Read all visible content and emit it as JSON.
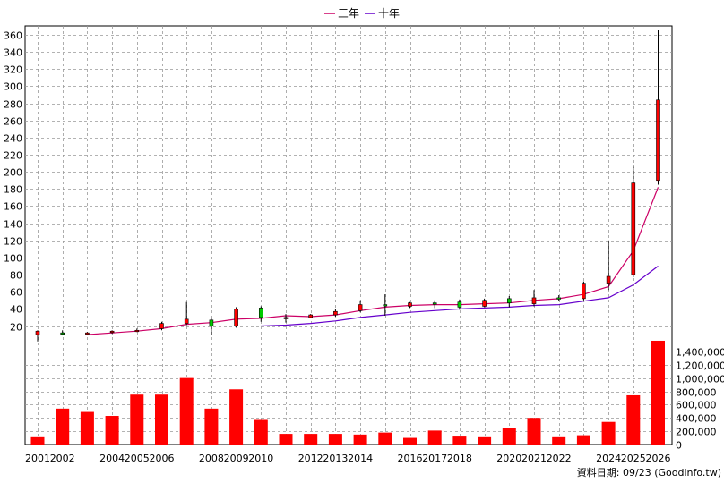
{
  "chart_data": {
    "type": "candlestick+bar",
    "legend": [
      {
        "name": "三年",
        "color": "#cc0066"
      },
      {
        "name": "十年",
        "color": "#6600cc"
      }
    ],
    "credit": "資料日期: 09/23 (Goodinfo.tw)",
    "price_axis": {
      "ticks": [
        20,
        40,
        60,
        80,
        100,
        120,
        140,
        160,
        180,
        200,
        220,
        240,
        260,
        280,
        300,
        320,
        340,
        360
      ]
    },
    "volume_axis": {
      "ticks": [
        "0",
        "200,000",
        "400,000",
        "600,000",
        "800,000",
        "1,000,000",
        "1,200,000",
        "1,400,000"
      ],
      "max": 1600000
    },
    "x_labels": [
      "2001",
      "2002",
      "2004",
      "2005",
      "2006",
      "2008",
      "2009",
      "2010",
      "2012",
      "2013",
      "2014",
      "2016",
      "2017",
      "2018",
      "2020",
      "2021",
      "2022",
      "2024",
      "2025",
      "2026"
    ],
    "candles": [
      {
        "year": 2001,
        "o": 10,
        "h": 15,
        "l": 2,
        "c": 14
      },
      {
        "year": 2002,
        "o": 12,
        "h": 15,
        "l": 9,
        "c": 11
      },
      {
        "year": 2003,
        "o": 11,
        "h": 13,
        "l": 9,
        "c": 12
      },
      {
        "year": 2004,
        "o": 13,
        "h": 15,
        "l": 11,
        "c": 14
      },
      {
        "year": 2005,
        "o": 14,
        "h": 17,
        "l": 13,
        "c": 15
      },
      {
        "year": 2006,
        "o": 17,
        "h": 25,
        "l": 15,
        "c": 23
      },
      {
        "year": 2007,
        "o": 23,
        "h": 48,
        "l": 21,
        "c": 28
      },
      {
        "year": 2008,
        "o": 27,
        "h": 30,
        "l": 10,
        "c": 20
      },
      {
        "year": 2009,
        "o": 20,
        "h": 42,
        "l": 18,
        "c": 40
      },
      {
        "year": 2010,
        "o": 41,
        "h": 43,
        "l": 25,
        "c": 30
      },
      {
        "year": 2011,
        "o": 30,
        "h": 34,
        "l": 24,
        "c": 30
      },
      {
        "year": 2012,
        "o": 30,
        "h": 34,
        "l": 29,
        "c": 33
      },
      {
        "year": 2013,
        "o": 33,
        "h": 40,
        "l": 31,
        "c": 37
      },
      {
        "year": 2014,
        "o": 38,
        "h": 50,
        "l": 36,
        "c": 45
      },
      {
        "year": 2015,
        "o": 45,
        "h": 57,
        "l": 32,
        "c": 44
      },
      {
        "year": 2016,
        "o": 43,
        "h": 48,
        "l": 41,
        "c": 47
      },
      {
        "year": 2017,
        "o": 47,
        "h": 50,
        "l": 41,
        "c": 46
      },
      {
        "year": 2018,
        "o": 48,
        "h": 51,
        "l": 39,
        "c": 42
      },
      {
        "year": 2019,
        "o": 43,
        "h": 52,
        "l": 42,
        "c": 50
      },
      {
        "year": 2020,
        "o": 52,
        "h": 55,
        "l": 42,
        "c": 47
      },
      {
        "year": 2021,
        "o": 46,
        "h": 62,
        "l": 43,
        "c": 53
      },
      {
        "year": 2022,
        "o": 53,
        "h": 56,
        "l": 49,
        "c": 52
      },
      {
        "year": 2023,
        "o": 52,
        "h": 72,
        "l": 50,
        "c": 70
      },
      {
        "year": 2024,
        "o": 70,
        "h": 120,
        "l": 62,
        "c": 78
      },
      {
        "year": 2025,
        "o": 80,
        "h": 206,
        "l": 77,
        "c": 187
      },
      {
        "year": 2026,
        "o": 190,
        "h": 366,
        "l": 185,
        "c": 284
      }
    ],
    "ma3": [
      {
        "year": 2003,
        "v": 10
      },
      {
        "year": 2004,
        "v": 12
      },
      {
        "year": 2005,
        "v": 14
      },
      {
        "year": 2006,
        "v": 17
      },
      {
        "year": 2007,
        "v": 22
      },
      {
        "year": 2008,
        "v": 24
      },
      {
        "year": 2009,
        "v": 28
      },
      {
        "year": 2010,
        "v": 29
      },
      {
        "year": 2011,
        "v": 32
      },
      {
        "year": 2012,
        "v": 31
      },
      {
        "year": 2013,
        "v": 33
      },
      {
        "year": 2014,
        "v": 38
      },
      {
        "year": 2015,
        "v": 42
      },
      {
        "year": 2016,
        "v": 44
      },
      {
        "year": 2017,
        "v": 45
      },
      {
        "year": 2018,
        "v": 45
      },
      {
        "year": 2019,
        "v": 46
      },
      {
        "year": 2020,
        "v": 47
      },
      {
        "year": 2021,
        "v": 50
      },
      {
        "year": 2022,
        "v": 52
      },
      {
        "year": 2023,
        "v": 57
      },
      {
        "year": 2024,
        "v": 66
      },
      {
        "year": 2025,
        "v": 108
      },
      {
        "year": 2026,
        "v": 182
      }
    ],
    "ma10": [
      {
        "year": 2010,
        "v": 20
      },
      {
        "year": 2011,
        "v": 21
      },
      {
        "year": 2012,
        "v": 23
      },
      {
        "year": 2013,
        "v": 26
      },
      {
        "year": 2014,
        "v": 30
      },
      {
        "year": 2015,
        "v": 33
      },
      {
        "year": 2016,
        "v": 36
      },
      {
        "year": 2017,
        "v": 38
      },
      {
        "year": 2018,
        "v": 40
      },
      {
        "year": 2019,
        "v": 41
      },
      {
        "year": 2020,
        "v": 42
      },
      {
        "year": 2021,
        "v": 44
      },
      {
        "year": 2022,
        "v": 45
      },
      {
        "year": 2023,
        "v": 49
      },
      {
        "year": 2024,
        "v": 53
      },
      {
        "year": 2025,
        "v": 68
      },
      {
        "year": 2026,
        "v": 90
      }
    ],
    "volume": [
      {
        "year": 2001,
        "v": 110000
      },
      {
        "year": 2002,
        "v": 540000
      },
      {
        "year": 2003,
        "v": 490000
      },
      {
        "year": 2004,
        "v": 430000
      },
      {
        "year": 2005,
        "v": 750000
      },
      {
        "year": 2006,
        "v": 750000
      },
      {
        "year": 2007,
        "v": 1000000
      },
      {
        "year": 2008,
        "v": 540000
      },
      {
        "year": 2009,
        "v": 830000
      },
      {
        "year": 2010,
        "v": 370000
      },
      {
        "year": 2011,
        "v": 160000
      },
      {
        "year": 2012,
        "v": 160000
      },
      {
        "year": 2013,
        "v": 160000
      },
      {
        "year": 2014,
        "v": 150000
      },
      {
        "year": 2015,
        "v": 180000
      },
      {
        "year": 2016,
        "v": 100000
      },
      {
        "year": 2017,
        "v": 210000
      },
      {
        "year": 2018,
        "v": 120000
      },
      {
        "year": 2019,
        "v": 110000
      },
      {
        "year": 2020,
        "v": 250000
      },
      {
        "year": 2021,
        "v": 400000
      },
      {
        "year": 2022,
        "v": 110000
      },
      {
        "year": 2023,
        "v": 140000
      },
      {
        "year": 2024,
        "v": 340000
      },
      {
        "year": 2025,
        "v": 740000
      },
      {
        "year": 2026,
        "v": 1560000
      }
    ]
  }
}
